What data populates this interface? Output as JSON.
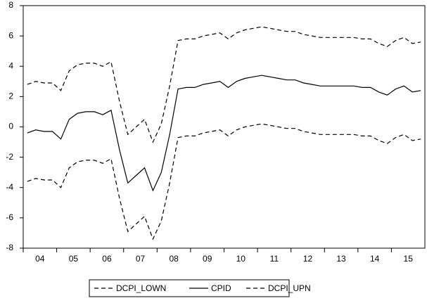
{
  "chart_data": {
    "type": "line",
    "categories": [
      null,
      "04",
      null,
      null,
      null,
      "05",
      null,
      null,
      null,
      "06",
      null,
      null,
      null,
      "07",
      null,
      null,
      null,
      "08",
      null,
      null,
      null,
      "09",
      null,
      null,
      null,
      "10",
      null,
      null,
      null,
      "11",
      null,
      null,
      null,
      "12",
      null,
      null,
      null,
      "13",
      null,
      null,
      null,
      "14",
      null,
      null,
      null,
      "15",
      null,
      null
    ],
    "series": [
      {
        "name": "DCPI_LOWN",
        "color": "#000000",
        "style": "dashed",
        "values": [
          -3.6,
          -3.4,
          -3.5,
          -3.5,
          -4.0,
          -2.7,
          -2.3,
          -2.2,
          -2.2,
          -2.4,
          -2.1,
          -4.7,
          -6.9,
          -6.4,
          -5.9,
          -7.4,
          -6.2,
          -3.7,
          -0.7,
          -0.6,
          -0.6,
          -0.4,
          -0.3,
          -0.2,
          -0.6,
          -0.2,
          0.0,
          0.1,
          0.2,
          0.1,
          0.0,
          -0.1,
          -0.1,
          -0.3,
          -0.4,
          -0.5,
          -0.5,
          -0.5,
          -0.5,
          -0.5,
          -0.6,
          -0.6,
          -0.9,
          -1.1,
          -0.7,
          -0.5,
          -0.9,
          -0.8
        ]
      },
      {
        "name": "CPID",
        "color": "#000000",
        "style": "solid",
        "values": [
          -0.4,
          -0.2,
          -0.3,
          -0.3,
          -0.8,
          0.5,
          0.9,
          1.0,
          1.0,
          0.8,
          1.1,
          -1.5,
          -3.7,
          -3.2,
          -2.7,
          -4.2,
          -3.0,
          -0.5,
          2.5,
          2.6,
          2.6,
          2.8,
          2.9,
          3.0,
          2.6,
          3.0,
          3.2,
          3.3,
          3.4,
          3.3,
          3.2,
          3.1,
          3.1,
          2.9,
          2.8,
          2.7,
          2.7,
          2.7,
          2.7,
          2.7,
          2.6,
          2.6,
          2.3,
          2.1,
          2.5,
          2.7,
          2.3,
          2.4
        ]
      },
      {
        "name": "DCPI_UPN",
        "color": "#000000",
        "style": "dashed",
        "values": [
          2.8,
          3.0,
          2.9,
          2.9,
          2.4,
          3.7,
          4.1,
          4.2,
          4.2,
          4.0,
          4.3,
          1.7,
          -0.5,
          0.0,
          0.5,
          -1.0,
          0.2,
          2.7,
          5.7,
          5.8,
          5.8,
          6.0,
          6.1,
          6.2,
          5.8,
          6.2,
          6.4,
          6.5,
          6.6,
          6.5,
          6.4,
          6.3,
          6.3,
          6.1,
          6.0,
          5.9,
          5.9,
          5.9,
          5.9,
          5.9,
          5.8,
          5.8,
          5.5,
          5.3,
          5.7,
          5.9,
          5.5,
          5.6
        ]
      }
    ],
    "ylim": [
      -8,
      8
    ],
    "yticks": [
      -8,
      -6,
      -4,
      -2,
      0,
      2,
      4,
      6,
      8
    ],
    "grid": false,
    "legend": "bottom"
  }
}
